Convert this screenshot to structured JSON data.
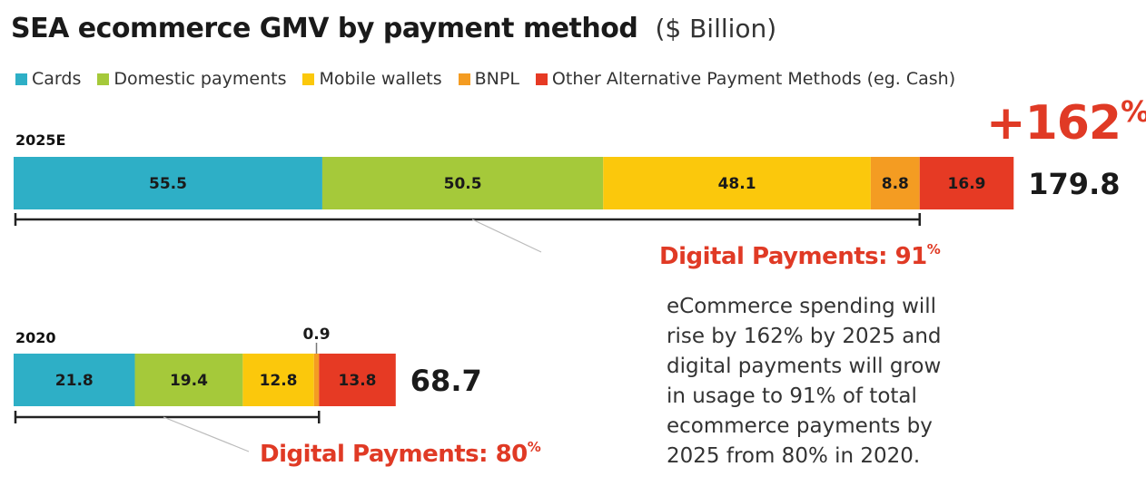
{
  "title": "SEA ecommerce GMV by payment method",
  "unit": "($ Billion)",
  "legend": [
    {
      "label": "Cards",
      "color": "#2eafc6"
    },
    {
      "label": "Domestic payments",
      "color": "#a5c93a"
    },
    {
      "label": "Mobile wallets",
      "color": "#fbc80c"
    },
    {
      "label": "BNPL",
      "color": "#f49c22"
    },
    {
      "label": "Other Alternative Payment Methods (eg. Cash)",
      "color": "#e63a24"
    }
  ],
  "growth": {
    "value": "+162",
    "suffix": "%"
  },
  "digital_2025": {
    "label": "Digital Payments: 91",
    "suffix": "%"
  },
  "digital_2020": {
    "label": "Digital Payments: 80",
    "suffix": "%"
  },
  "note": "eCommerce spending will rise by 162% by 2025 and digital payments will grow in usage to 91% of total ecommerce payments by 2025 from 80% in 2020.",
  "chart_data": {
    "type": "bar",
    "orientation": "horizontal-stacked",
    "categories": [
      "2025E",
      "2020"
    ],
    "series": [
      {
        "name": "Cards",
        "values": [
          55.5,
          21.8
        ]
      },
      {
        "name": "Domestic payments",
        "values": [
          50.5,
          19.4
        ]
      },
      {
        "name": "Mobile wallets",
        "values": [
          48.1,
          12.8
        ]
      },
      {
        "name": "BNPL",
        "values": [
          8.8,
          0.9
        ]
      },
      {
        "name": "Other Alternative Payment Methods (eg. Cash)",
        "values": [
          16.9,
          13.8
        ]
      }
    ],
    "totals": [
      "179.8",
      "68.7"
    ],
    "value_labels": [
      [
        "55.5",
        "50.5",
        "48.1",
        "8.8",
        "16.9"
      ],
      [
        "21.8",
        "19.4",
        "12.8",
        "0.9",
        "13.8"
      ]
    ],
    "legend_position": "top-left",
    "grid": false
  }
}
